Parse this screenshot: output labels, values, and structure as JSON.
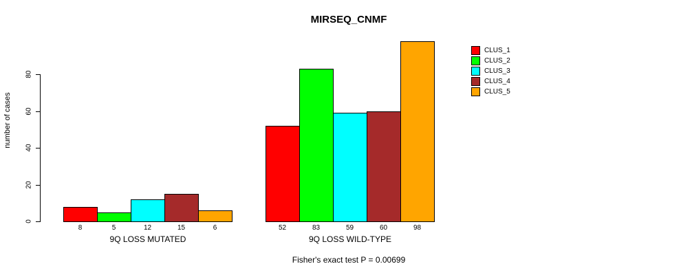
{
  "title": "MIRSEQ_CNMF",
  "footer": "Fisher's exact test P = 0.00699",
  "legend": {
    "items": [
      {
        "label": "CLUS_1",
        "color": "#FF0000"
      },
      {
        "label": "CLUS_2",
        "color": "#00FF00"
      },
      {
        "label": "CLUS_3",
        "color": "#00FFFF"
      },
      {
        "label": "CLUS_4",
        "color": "#A52A2A"
      },
      {
        "label": "CLUS_5",
        "color": "#FFA500"
      }
    ]
  },
  "chart_data": {
    "type": "bar",
    "title": "MIRSEQ_CNMF",
    "xlabel": "",
    "ylabel": "number of cases",
    "yticks": [
      0,
      20,
      40,
      60,
      80
    ],
    "ylim": [
      0,
      100
    ],
    "grid": false,
    "legend_position": "right",
    "series": [
      "CLUS_1",
      "CLUS_2",
      "CLUS_3",
      "CLUS_4",
      "CLUS_5"
    ],
    "series_colors": [
      "#FF0000",
      "#00FF00",
      "#00FFFF",
      "#A52A2A",
      "#FFA500"
    ],
    "groups": [
      {
        "label": "9Q LOSS MUTATED",
        "values": [
          8,
          5,
          12,
          15,
          6
        ]
      },
      {
        "label": "9Q LOSS WILD-TYPE",
        "values": [
          52,
          83,
          59,
          60,
          98
        ]
      }
    ],
    "annotation": "Fisher's exact test P = 0.00699"
  }
}
